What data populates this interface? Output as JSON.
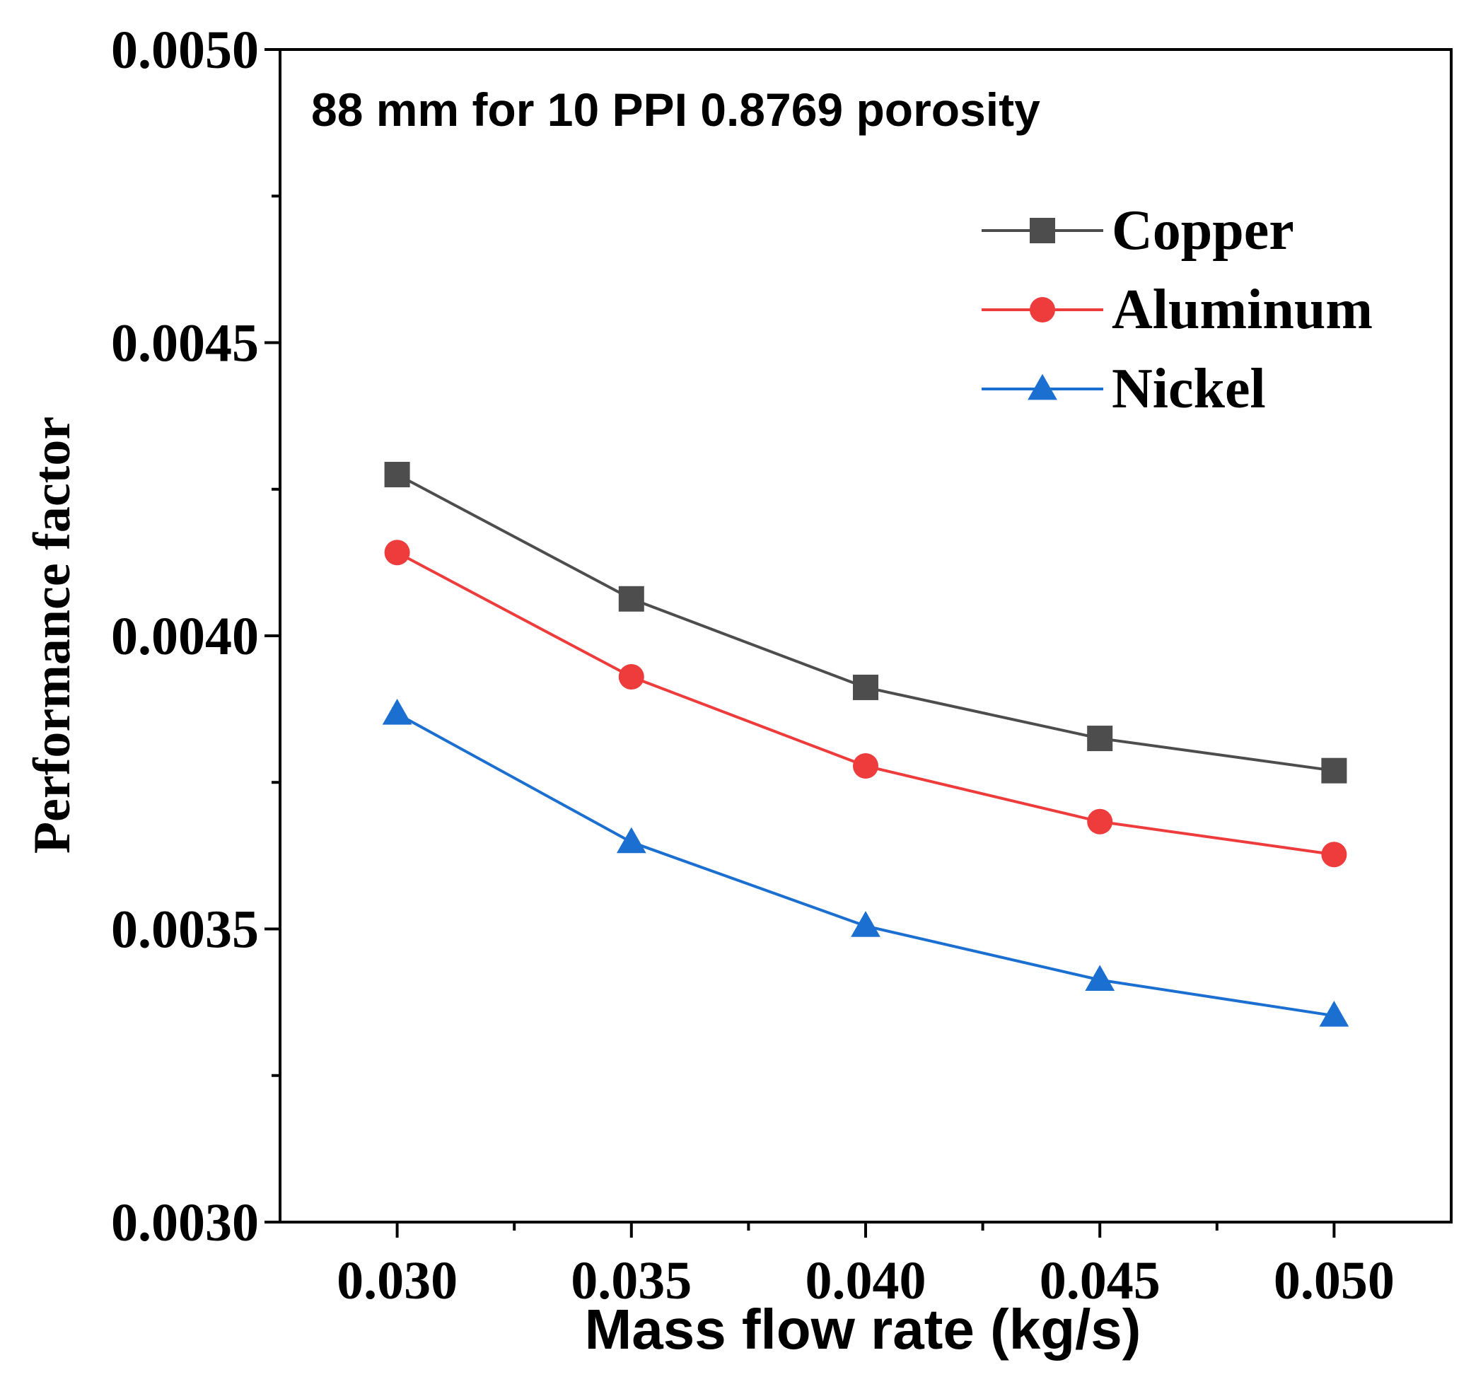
{
  "chart_data": {
    "type": "line",
    "title": "",
    "annotation": "88 mm for 10 PPI 0.8769 porosity",
    "xlabel": "Mass flow rate (kg/s)",
    "ylabel": "Performance factor",
    "x": [
      0.03,
      0.035,
      0.04,
      0.045,
      0.05
    ],
    "x_tick_labels": [
      "0.030",
      "0.035",
      "0.040",
      "0.045",
      "0.050"
    ],
    "y_tick_labels": [
      "0.0030",
      "0.0035",
      "0.0040",
      "0.0045",
      "0.0050"
    ],
    "y_ticks": [
      0.003,
      0.0035,
      0.004,
      0.0045,
      0.005
    ],
    "xlim": [
      0.0275,
      0.0525
    ],
    "ylim": [
      0.003,
      0.005
    ],
    "grid": false,
    "legend_position": "top-right",
    "series": [
      {
        "name": "Copper",
        "color": "#4d4d4d",
        "marker": "square",
        "values": [
          0.004275,
          0.004063,
          0.003912,
          0.003825,
          0.00377
        ]
      },
      {
        "name": "Aluminum",
        "color": "#ee3b3b",
        "marker": "circle",
        "values": [
          0.004142,
          0.00393,
          0.003778,
          0.003683,
          0.003627
        ]
      },
      {
        "name": "Nickel",
        "color": "#1a6fd1",
        "marker": "triangle",
        "values": [
          0.003867,
          0.003648,
          0.003505,
          0.003413,
          0.003352
        ]
      }
    ]
  }
}
